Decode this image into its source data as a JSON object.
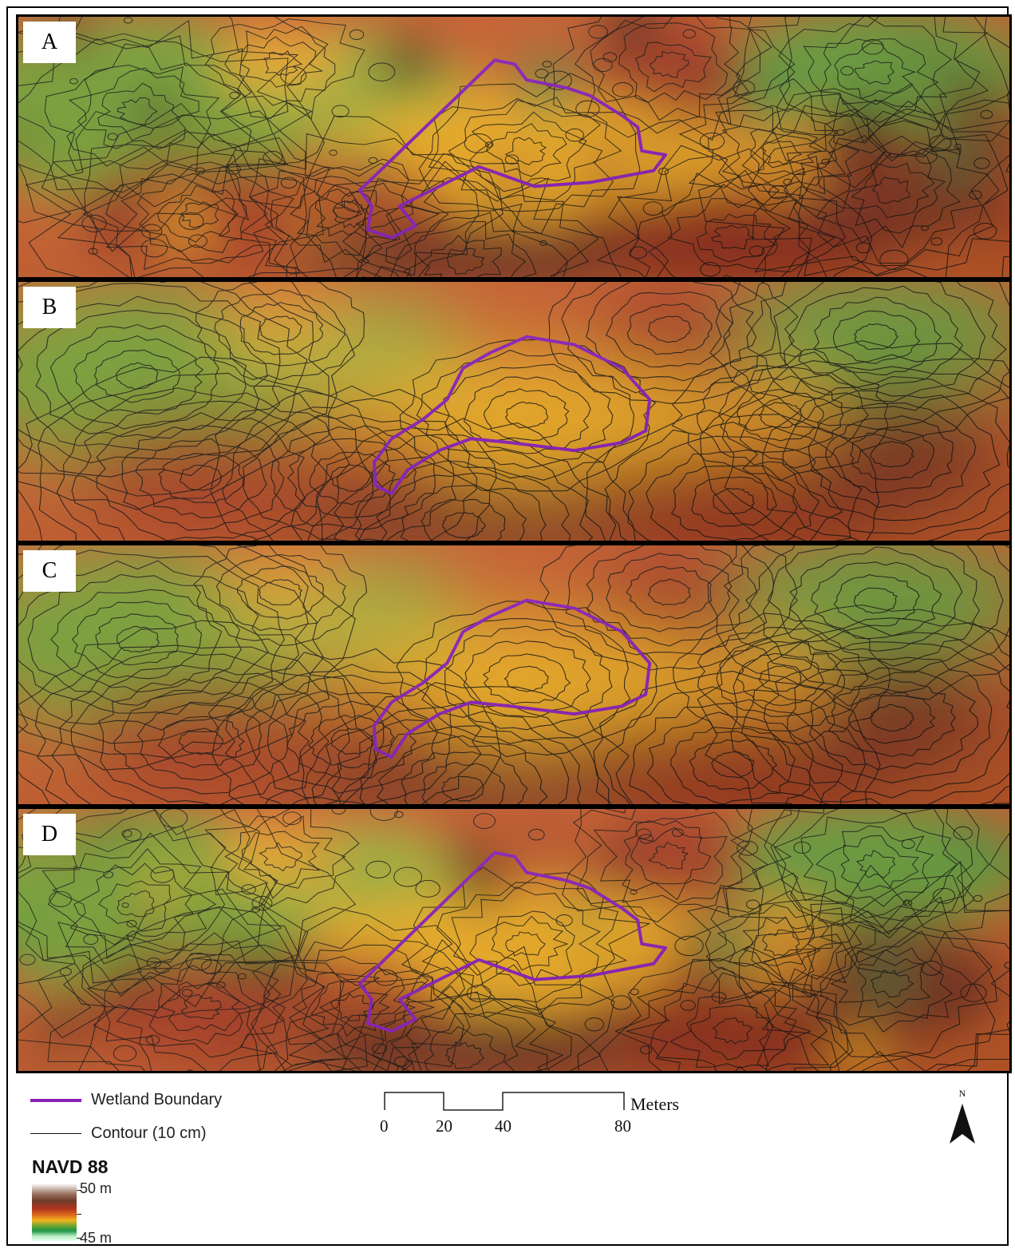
{
  "panels": [
    {
      "label": "A",
      "style": "rough"
    },
    {
      "label": "B",
      "style": "smooth"
    },
    {
      "label": "C",
      "style": "smoother"
    },
    {
      "label": "D",
      "style": "rough"
    }
  ],
  "legend": {
    "wetland_boundary": "Wetland Boundary",
    "contour": "Contour (10 cm)",
    "datum_title": "NAVD 88",
    "elev_max": "50 m",
    "elev_min": "45 m"
  },
  "scale_bar": {
    "ticks": [
      "0",
      "20",
      "40",
      "80"
    ],
    "units": "Meters"
  },
  "north_arrow": {
    "label": "N",
    "icon": "north-arrow-icon"
  },
  "colors": {
    "wetland_boundary": "#8a1fb8",
    "contour": "#111111",
    "high": "#6e3e2a",
    "mid_high": "#b23420",
    "mid": "#e0731c",
    "low_mid": "#f3b51f",
    "low": "#1d9445"
  }
}
